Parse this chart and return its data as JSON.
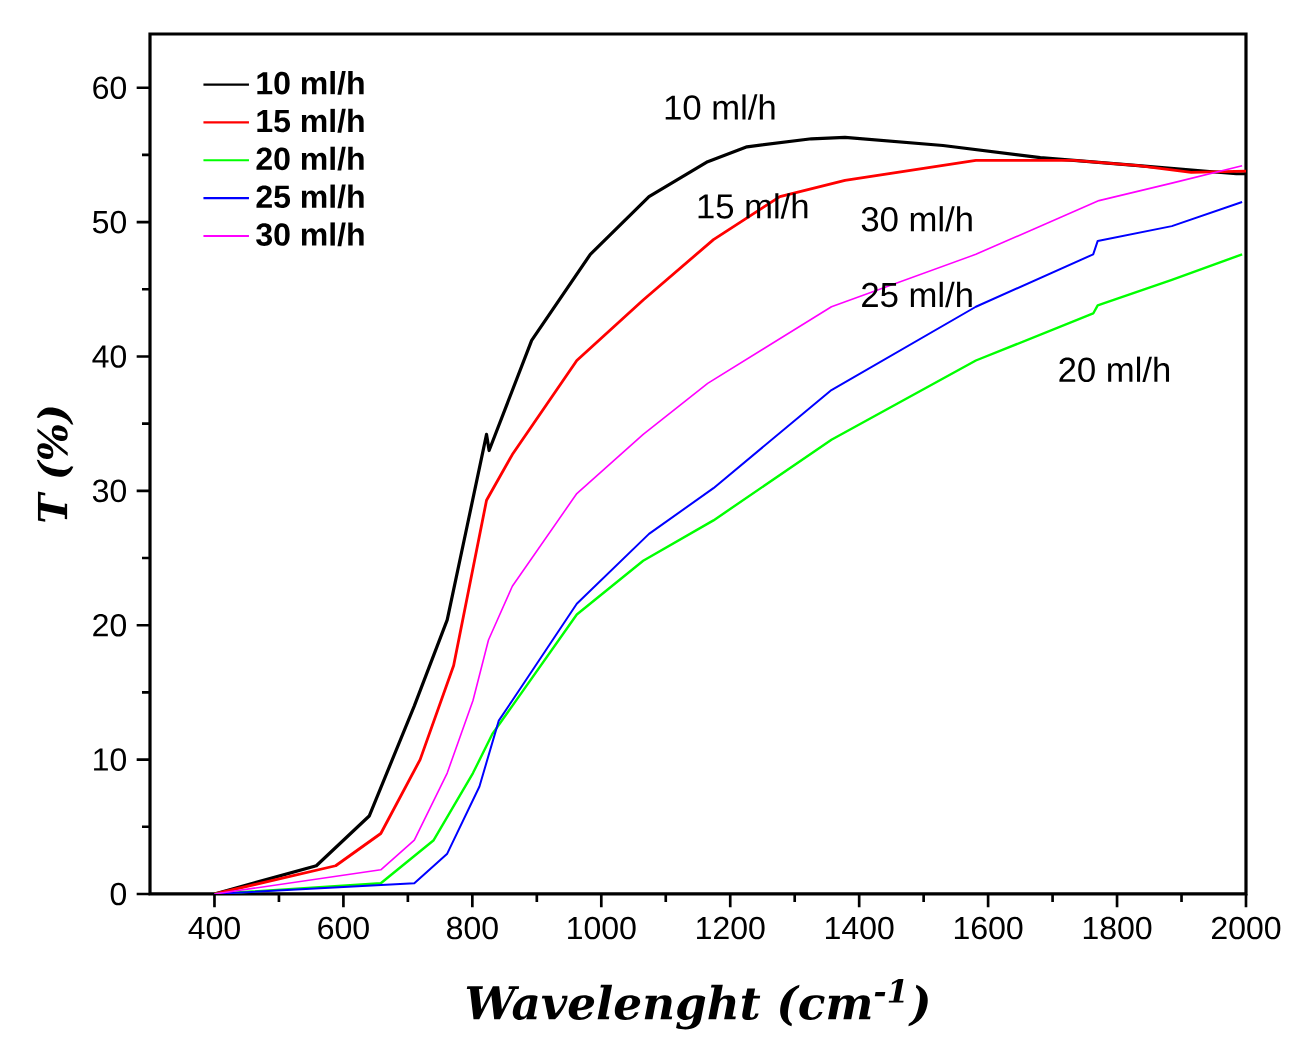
{
  "chart_data": {
    "type": "line",
    "xlabel": "Wavelenght (cm$^{-1}$)",
    "ylabel": "T (%)",
    "xlim": [
      300,
      2000
    ],
    "ylim": [
      0,
      64
    ],
    "xticks": [
      400,
      600,
      800,
      1000,
      1200,
      1400,
      1600,
      1800,
      2000
    ],
    "yticks": [
      0,
      10,
      20,
      30,
      40,
      50,
      60
    ],
    "grid": false,
    "legend": "top left",
    "marker": "none",
    "line_style": "solid",
    "series": [
      {
        "name": "10 ml/h",
        "color": "#000000",
        "x": [
          400,
          558,
          640,
          710,
          761,
          792,
          822,
          826,
          892,
          983,
          1074,
          1165,
          1226,
          1326,
          1378,
          1530,
          1681,
          1833,
          1985,
          2000
        ],
        "values": [
          0,
          2.1,
          5.8,
          14,
          20.4,
          27.4,
          34.2,
          33,
          41.2,
          47.6,
          51.9,
          54.5,
          55.6,
          56.2,
          56.3,
          55.7,
          54.8,
          54.2,
          53.6,
          53.6
        ]
      },
      {
        "name": "15 ml/h",
        "color": "#ff0000",
        "x": [
          400,
          588,
          658,
          719,
          771,
          822,
          862,
          962,
          1065,
          1174,
          1277,
          1378,
          1581,
          1733,
          1833,
          1915,
          2000
        ],
        "values": [
          0,
          2.1,
          4.5,
          10,
          17,
          29.3,
          32.7,
          39.7,
          44.2,
          48.7,
          51.9,
          53.1,
          54.6,
          54.6,
          54.2,
          53.7,
          53.8
        ]
      },
      {
        "name": "20 ml/h",
        "color": "#00ff00",
        "x": [
          400,
          658,
          740,
          801,
          831,
          862,
          962,
          1065,
          1174,
          1357,
          1581,
          1763,
          1770,
          1885,
          1994
        ],
        "values": [
          0,
          0.8,
          4,
          9,
          11.9,
          14,
          20.8,
          24.8,
          27.8,
          33.8,
          39.7,
          43.2,
          43.8,
          45.7,
          47.6
        ]
      },
      {
        "name": "25 ml/h",
        "color": "#0000ff",
        "x": [
          400,
          710,
          761,
          811,
          841,
          862,
          962,
          1074,
          1174,
          1357,
          1581,
          1763,
          1770,
          1885,
          1994
        ],
        "values": [
          0,
          0.8,
          3,
          8,
          12.9,
          14.4,
          21.6,
          26.8,
          30.2,
          37.5,
          43.7,
          47.6,
          48.6,
          49.7,
          51.5
        ]
      },
      {
        "name": "30 ml/h",
        "color": "#ff00ff",
        "x": [
          400,
          658,
          710,
          761,
          801,
          825,
          862,
          962,
          1065,
          1165,
          1357,
          1581,
          1772,
          1885,
          1994
        ],
        "values": [
          0,
          1.8,
          4,
          9,
          14.4,
          18.9,
          22.9,
          29.8,
          34.2,
          38,
          43.7,
          47.6,
          51.6,
          52.9,
          54.2
        ]
      }
    ],
    "annotations": [
      "10 ml/h",
      "15 ml/h",
      "30 ml/h",
      "25 ml/h",
      "20 ml/h"
    ]
  }
}
